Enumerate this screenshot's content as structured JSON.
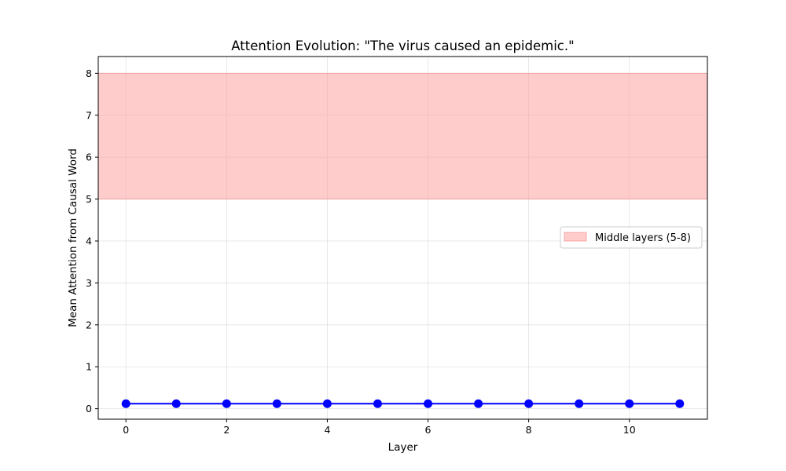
{
  "chart_data": {
    "type": "line",
    "title": "Attention Evolution: \"The virus caused an epidemic.\"",
    "xlabel": "Layer",
    "ylabel": "Mean Attention from Causal Word",
    "xlim": [
      -0.55,
      11.55
    ],
    "ylim": [
      -0.25,
      8.4
    ],
    "x_ticks": [
      0,
      2,
      4,
      6,
      8,
      10
    ],
    "y_ticks": [
      0,
      1,
      2,
      3,
      4,
      5,
      6,
      7,
      8
    ],
    "grid": true,
    "series": [
      {
        "x": [
          0,
          1,
          2,
          3,
          4,
          5,
          6,
          7,
          8,
          9,
          10,
          11
        ],
        "values": [
          0.12,
          0.12,
          0.12,
          0.12,
          0.12,
          0.12,
          0.12,
          0.12,
          0.12,
          0.12,
          0.12,
          0.12
        ],
        "color": "#0000ff",
        "marker": "circle"
      }
    ],
    "shaded_region": {
      "label": "Middle layers (5-8)",
      "y_range": [
        5,
        8
      ],
      "color": "#ff9999",
      "edge_color": "#f08080"
    },
    "legend_position": "center-right"
  }
}
